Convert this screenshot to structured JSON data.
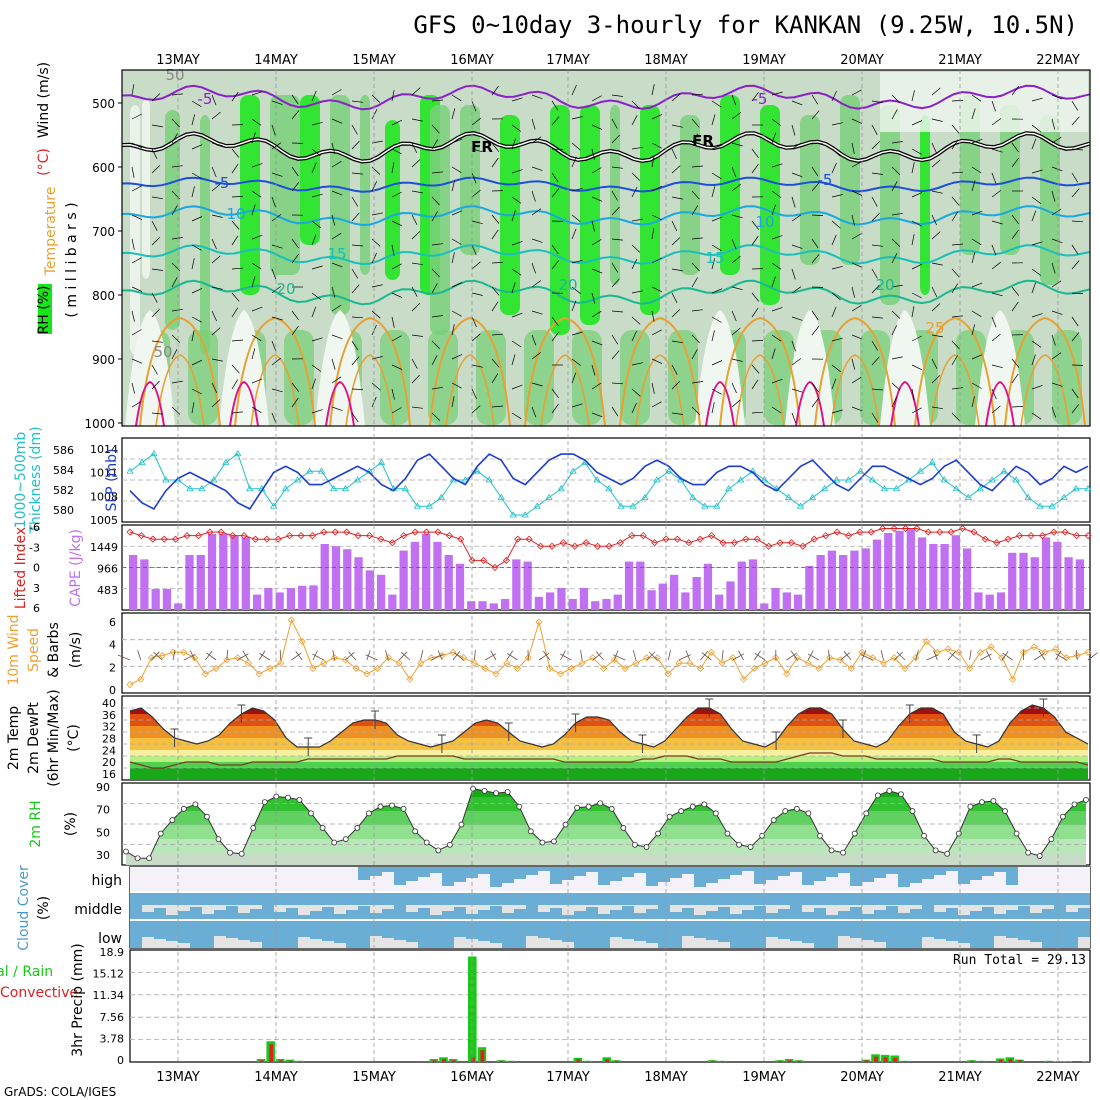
{
  "title": "GFS 0~10day 3-hourly for KANKAN (9.25W, 10.5N)",
  "footer": "GrADS: COLA/IGES",
  "dates": [
    "13MAY",
    "14MAY",
    "15MAY",
    "16MAY",
    "17MAY",
    "18MAY",
    "19MAY",
    "20MAY",
    "21MAY",
    "22MAY"
  ],
  "colors": {
    "rh_light": "#f0f6f0",
    "rh_mid": "#c8dcc8",
    "rh_green": "#7ad07a",
    "rh_bright": "#19e619",
    "purple": "#8a20c8",
    "blue": "#1c4fd8",
    "cyan": "#19a8e0",
    "teal": "#19c0b8",
    "seagreen": "#19b890",
    "orange": "#e8a030",
    "magenta": "#e0108a",
    "slp": "#1c3cd0",
    "thickness": "#20c0c8",
    "li": "#e02020",
    "cape": "#c070f0",
    "wind": "#f0a030",
    "rh2m": "#19c819",
    "cloud": "#6aaed6",
    "rain": "#19c819",
    "conv": "#e02020"
  },
  "panels": {
    "profile": {
      "label_rh": "RH (%)",
      "label_temp": "Temperature",
      "label_tunit": "(°C)",
      "label_wind": "Wind (m/s)",
      "label_unit": "( m i l l i b a r s )",
      "yticks": [
        "500",
        "600",
        "700",
        "800",
        "900",
        "1000"
      ],
      "contour_labels": [
        "-5",
        "-5",
        "FR",
        "FR",
        "-5",
        "-5",
        "10",
        "10",
        "15",
        "15",
        "20",
        "20",
        "20",
        "25",
        "50",
        "50"
      ]
    },
    "thickness": {
      "label1": "1000~500mb",
      "label2": "Thickness (dm)",
      "label3": "SLP (mb)",
      "yticks_left": [
        "586",
        "584",
        "582",
        "580"
      ],
      "yticks_right": [
        "1014",
        "1011",
        "1008",
        "1005"
      ]
    },
    "cape": {
      "label1": "Lifted Index",
      "label2": "CAPE (J/kg)",
      "yticks_left": [
        "-6",
        "-3",
        "0",
        "3",
        "6"
      ],
      "yticks_right": [
        "1449",
        "966",
        "483"
      ]
    },
    "wind": {
      "label1": "10m Wind",
      "label2": "Speed",
      "label3": "& Barbs",
      "label4": "(m/s)",
      "yticks": [
        "0",
        "2",
        "4",
        "6"
      ]
    },
    "temp": {
      "label1": "2m Temp",
      "label2": "2m DewPt",
      "label3": "(6hr Min/Max)",
      "label4": "(°C)",
      "yticks": [
        "40",
        "36",
        "32",
        "28",
        "24",
        "20",
        "16"
      ]
    },
    "rh": {
      "label1": "2m RH",
      "label2": "(%)",
      "yticks": [
        "90",
        "70",
        "50",
        "30"
      ]
    },
    "cloud": {
      "label1": "Cloud Cover",
      "label2": "(%)",
      "levels": [
        "high",
        "middle",
        "low"
      ]
    },
    "precip": {
      "label1": "Total / Rain",
      "label2": "Convective",
      "label3": "3hr Precip (mm)",
      "yticks": [
        "18.9",
        "15.12",
        "11.34",
        "7.56",
        "3.78",
        "0"
      ],
      "run_total": "Run Total = 29.13"
    }
  },
  "chart_data": [
    {
      "type": "line",
      "title": "1000~500mb Thickness (dm) / SLP (mb)",
      "x_step_hours": 3,
      "ylim_left": [
        579,
        587
      ],
      "ylim_right": [
        1004,
        1015.5
      ],
      "series": [
        {
          "name": "1000~500mb Thickness (dm)",
          "axis": "left",
          "values": [
            584,
            585,
            586,
            583,
            583,
            582,
            582,
            583,
            585,
            586,
            582,
            582,
            580,
            582,
            583,
            584,
            584,
            582,
            582,
            583,
            584,
            585,
            582,
            582,
            580,
            580,
            581,
            583,
            583,
            584,
            583,
            581,
            579,
            579,
            580,
            581,
            582,
            584,
            585,
            583,
            582,
            580,
            580,
            581,
            583,
            584,
            583,
            581,
            580,
            580,
            582,
            583,
            584,
            583,
            582,
            581,
            580,
            581,
            582,
            583,
            583,
            584,
            583,
            582,
            582,
            583,
            584,
            585,
            583,
            582,
            581,
            582,
            583,
            584,
            583,
            581,
            580,
            580,
            581,
            582,
            582
          ]
        },
        {
          "name": "SLP (mb)",
          "axis": "right",
          "values": [
            1008,
            1006,
            1005,
            1008,
            1010,
            1011,
            1010,
            1009,
            1008,
            1006,
            1005,
            1008,
            1011,
            1012,
            1011,
            1009,
            1009,
            1010,
            1011,
            1012,
            1011,
            1009,
            1008,
            1010,
            1013,
            1014,
            1012,
            1010,
            1009,
            1012,
            1014,
            1013,
            1010,
            1009,
            1011,
            1013,
            1014,
            1014,
            1013,
            1011,
            1010,
            1009,
            1010,
            1012,
            1013,
            1012,
            1010,
            1009,
            1009,
            1011,
            1012,
            1012,
            1011,
            1009,
            1008,
            1010,
            1012,
            1013,
            1011,
            1009,
            1008,
            1010,
            1012,
            1012,
            1011,
            1010,
            1009,
            1010,
            1012,
            1013,
            1011,
            1009,
            1008,
            1010,
            1012,
            1011,
            1009,
            1010,
            1012,
            1011,
            1012
          ]
        }
      ]
    },
    {
      "type": "bar",
      "title": "Lifted Index / CAPE (J/kg)",
      "ylim_cape": [
        0,
        1932
      ],
      "ylim_li": [
        6,
        -6
      ],
      "series": [
        {
          "name": "CAPE (J/kg)",
          "values": [
            1250,
            1150,
            480,
            480,
            150,
            1250,
            1250,
            1730,
            1730,
            1680,
            1650,
            350,
            500,
            400,
            500,
            550,
            560,
            1500,
            1450,
            1380,
            1200,
            900,
            800,
            350,
            1350,
            1550,
            1730,
            1550,
            1250,
            1050,
            200,
            200,
            150,
            250,
            1150,
            1100,
            300,
            400,
            500,
            250,
            500,
            200,
            250,
            350,
            1100,
            1100,
            450,
            600,
            800,
            400,
            750,
            1050,
            350,
            650,
            1100,
            1150,
            150,
            500,
            400,
            350,
            1000,
            1250,
            1350,
            1250,
            1350,
            1400,
            1600,
            1750,
            1800,
            1850,
            1650,
            1500,
            1500,
            1700,
            1400,
            400,
            350,
            400,
            1300,
            1300,
            1200,
            1650,
            1550,
            1200,
            1150
          ]
        },
        {
          "name": "Lifted Index",
          "values": [
            -5,
            -4.5,
            -4,
            -4,
            -4,
            -4.5,
            -4.5,
            -5,
            -5,
            -4.5,
            -4.5,
            -4,
            -4,
            -4,
            -4.5,
            -4.5,
            -4.5,
            -5,
            -5,
            -5,
            -4.5,
            -4.5,
            -4,
            -3.5,
            -4.5,
            -5,
            -5,
            -5,
            -4.5,
            -4,
            -1,
            -1,
            0,
            -1,
            -4,
            -4,
            -3,
            -3,
            -3.5,
            -3,
            -3.5,
            -3,
            -3,
            -3.5,
            -4.5,
            -4.5,
            -3.5,
            -4,
            -4,
            -3.5,
            -4,
            -4.5,
            -3.5,
            -3.5,
            -4,
            -4,
            -3,
            -3.5,
            -3.5,
            -3,
            -4,
            -4.5,
            -5,
            -4.5,
            -5,
            -5,
            -5.5,
            -5.5,
            -5.5,
            -5.5,
            -5,
            -5,
            -5,
            -5.5,
            -5,
            -4,
            -3.5,
            -4,
            -4.5,
            -4.5,
            -4.5,
            -5,
            -5,
            -4.5,
            -4.5
          ]
        }
      ]
    },
    {
      "type": "line",
      "title": "10m Wind Speed & Barbs (m/s)",
      "ylim": [
        0,
        7
      ],
      "series": [
        {
          "name": "10m Wind Speed (m/s)",
          "values": [
            0.5,
            1,
            3,
            3.2,
            3.5,
            3.5,
            3,
            1.5,
            2,
            2.8,
            3,
            2.5,
            1.5,
            2,
            2.5,
            6.5,
            4.5,
            2,
            2.5,
            3,
            2.8,
            2,
            1.5,
            2,
            3,
            2.5,
            1,
            2.5,
            3,
            3.2,
            3.5,
            3,
            2.5,
            2,
            1.5,
            2.5,
            2,
            3,
            6.3,
            2,
            1.5,
            2,
            2.5,
            3,
            2,
            2.8,
            2,
            2.5,
            3,
            3,
            1.5,
            2.5,
            2.5,
            2,
            3.5,
            2.5,
            3,
            1,
            2,
            2.5,
            3,
            1.5,
            3,
            2.5,
            2,
            3,
            2.8,
            2,
            3.5,
            3,
            2.5,
            3,
            2,
            3,
            4.5,
            3.5,
            3.8,
            3.5,
            2,
            3.5,
            4,
            3,
            1,
            3.5,
            4,
            3.5,
            3.8,
            3,
            3.2,
            3.5
          ]
        }
      ]
    },
    {
      "type": "area",
      "title": "2m Temp / 2m DewPt (°C)",
      "ylim": [
        14,
        42
      ],
      "series": [
        {
          "name": "2m Temp",
          "values": [
            37,
            38,
            35,
            31,
            28,
            27,
            26,
            27,
            29,
            33,
            36,
            38,
            37,
            34,
            28,
            25,
            25,
            25,
            27,
            30,
            33,
            34,
            34,
            33,
            29,
            27,
            26,
            25,
            26,
            27,
            30,
            33,
            34,
            33,
            30,
            27,
            26,
            25,
            26,
            29,
            33,
            35,
            35,
            34,
            30,
            27,
            26,
            25,
            27,
            31,
            35,
            38,
            38,
            36,
            31,
            27,
            26,
            25,
            27,
            32,
            36,
            38,
            38,
            36,
            31,
            27,
            26,
            25,
            27,
            32,
            36,
            38,
            38,
            36,
            30,
            27,
            26,
            25,
            27,
            33,
            37,
            39,
            38,
            35,
            30,
            28,
            26
          ]
        },
        {
          "name": "2m DewPt",
          "values": [
            20,
            19,
            18,
            18,
            19,
            20,
            20,
            20,
            19,
            19,
            19,
            20,
            20,
            20,
            20,
            20,
            21,
            21,
            21,
            21,
            21,
            21,
            21,
            21,
            22,
            22,
            22,
            22,
            22,
            22,
            21,
            21,
            21,
            21,
            21,
            21,
            21,
            21,
            21,
            20,
            20,
            20,
            20,
            20,
            20,
            20,
            21,
            21,
            22,
            22,
            22,
            21,
            21,
            21,
            20,
            20,
            20,
            20,
            20,
            21,
            22,
            23,
            23,
            23,
            22,
            22,
            22,
            21,
            21,
            21,
            21,
            21,
            21,
            20,
            20,
            20,
            20,
            20,
            21,
            21,
            20,
            20,
            20,
            20,
            20,
            20,
            19
          ]
        }
      ]
    },
    {
      "type": "area",
      "title": "2m RH (%)",
      "ylim": [
        22,
        95
      ],
      "series": [
        {
          "name": "2m RH (%)",
          "values": [
            34,
            28,
            28,
            50,
            62,
            72,
            76,
            65,
            45,
            33,
            32,
            55,
            78,
            83,
            82,
            80,
            68,
            55,
            42,
            45,
            55,
            68,
            74,
            75,
            72,
            52,
            42,
            35,
            40,
            58,
            90,
            88,
            86,
            87,
            74,
            52,
            42,
            43,
            58,
            73,
            74,
            77,
            72,
            55,
            40,
            38,
            50,
            65,
            70,
            74,
            76,
            68,
            50,
            40,
            38,
            48,
            62,
            70,
            72,
            68,
            48,
            35,
            33,
            50,
            68,
            84,
            88,
            85,
            70,
            48,
            35,
            32,
            50,
            74,
            78,
            79,
            70,
            50,
            33,
            30,
            45,
            65,
            76,
            80
          ]
        }
      ]
    },
    {
      "type": "bar",
      "title": "3hr Precip (mm)",
      "ylim": [
        0,
        18.9
      ],
      "series": [
        {
          "name": "Total / Rain",
          "values": [
            0,
            0,
            0,
            0,
            0,
            0,
            0,
            0,
            0,
            0,
            0,
            0,
            0,
            0.5,
            3.5,
            0.5,
            0.4,
            0.2,
            0,
            0,
            0,
            0,
            0,
            0,
            0,
            0,
            0,
            0,
            0,
            0,
            0,
            0.5,
            0.8,
            0.5,
            0,
            17.8,
            2.5,
            0,
            0.3,
            0.2,
            0,
            0,
            0,
            0,
            0,
            0,
            0.7,
            0.2,
            0,
            0.8,
            0.3,
            0,
            0,
            0,
            0,
            0,
            0,
            0,
            0,
            0,
            0.3,
            0.2,
            0,
            0,
            0,
            0,
            0,
            0.3,
            0.5,
            0.3,
            0,
            0,
            0,
            0,
            0,
            0,
            0.4,
            1.3,
            1.2,
            1.1,
            0.2,
            0,
            0,
            0,
            0,
            0,
            0,
            0.3,
            0.2,
            0,
            0.6,
            0.8,
            0.4,
            0,
            0,
            0.2,
            0.1,
            0.1,
            0,
            0.1
          ]
        },
        {
          "name": "Convective",
          "values": [
            0,
            0,
            0,
            0,
            0,
            0,
            0,
            0,
            0,
            0,
            0,
            0,
            0,
            0.3,
            3,
            0.3,
            0.2,
            0.1,
            0,
            0,
            0,
            0,
            0,
            0,
            0,
            0,
            0,
            0,
            0,
            0,
            0,
            0.3,
            0.5,
            0.3,
            0,
            0.8,
            2,
            0,
            0.2,
            0.1,
            0,
            0,
            0,
            0,
            0,
            0,
            0.5,
            0.1,
            0,
            0.5,
            0.2,
            0,
            0,
            0,
            0,
            0,
            0,
            0,
            0,
            0,
            0.2,
            0.1,
            0,
            0,
            0,
            0,
            0,
            0.2,
            0.3,
            0.2,
            0,
            0,
            0,
            0,
            0,
            0,
            0.3,
            0.9,
            0.8,
            0.7,
            0.1,
            0,
            0,
            0,
            0,
            0,
            0,
            0.2,
            0.1,
            0,
            0.4,
            0.5,
            0.3,
            0,
            0,
            0.1,
            0.1,
            0.1,
            0,
            0.1
          ]
        }
      ]
    }
  ]
}
